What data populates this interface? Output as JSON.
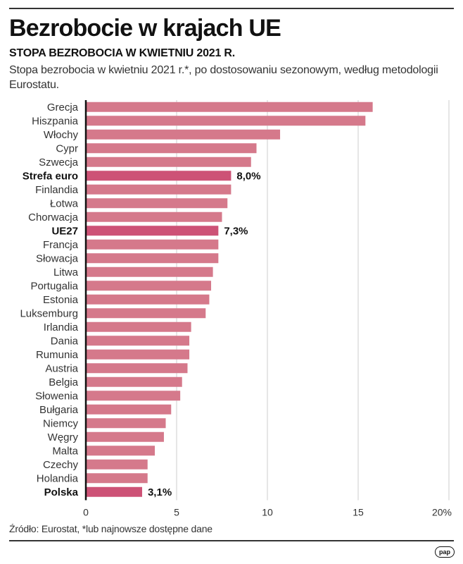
{
  "header": {
    "title": "Bezrobocie w krajach UE",
    "subtitle": "STOPA BEZROBOCIA W KWIETNIU 2021 R.",
    "description": "Stopa bezrobocia w kwietniu 2021 r.*, po dostosowaniu sezonowym, według metodologii Eurostatu."
  },
  "footer": {
    "source": "Źródło: Eurostat, *lub najnowsze dostępne dane",
    "logo": "pap"
  },
  "colors": {
    "bar": "#d5798b",
    "bar_highlight": "#cd5276",
    "grid": "#cccccc",
    "axis": "#111111"
  },
  "chart_data": {
    "type": "bar",
    "orientation": "horizontal",
    "title": "Bezrobocie w krajach UE",
    "xlabel": "",
    "ylabel": "",
    "xlim": [
      0,
      20
    ],
    "xticks": [
      "0",
      "5",
      "10",
      "15",
      "20%"
    ],
    "xtick_values": [
      0,
      5,
      10,
      15,
      20
    ],
    "grid": true,
    "categories": [
      "Grecja",
      "Hiszpania",
      "Włochy",
      "Cypr",
      "Szwecja",
      "Strefa euro",
      "Finlandia",
      "Łotwa",
      "Chorwacja",
      "UE27",
      "Francja",
      "Słowacja",
      "Litwa",
      "Portugalia",
      "Estonia",
      "Luksemburg",
      "Irlandia",
      "Dania",
      "Rumunia",
      "Austria",
      "Belgia",
      "Słowenia",
      "Bułgaria",
      "Niemcy",
      "Węgry",
      "Malta",
      "Czechy",
      "Holandia",
      "Polska"
    ],
    "values": [
      15.8,
      15.4,
      10.7,
      9.4,
      9.1,
      8.0,
      8.0,
      7.8,
      7.5,
      7.3,
      7.3,
      7.3,
      7.0,
      6.9,
      6.8,
      6.6,
      5.8,
      5.7,
      5.7,
      5.6,
      5.3,
      5.2,
      4.7,
      4.4,
      4.3,
      3.8,
      3.4,
      3.4,
      3.1
    ],
    "highlighted": [
      "Strefa euro",
      "UE27",
      "Polska"
    ],
    "data_labels": {
      "Strefa euro": "8,0%",
      "UE27": "7,3%",
      "Polska": "3,1%"
    }
  }
}
